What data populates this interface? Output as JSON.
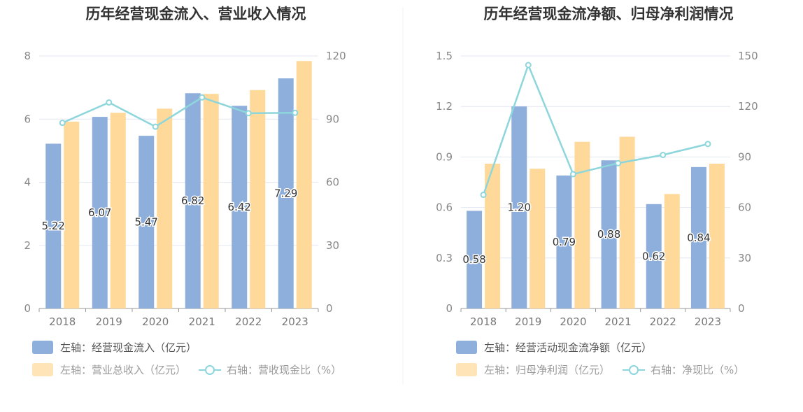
{
  "colors": {
    "bar_primary": "#8eaedc",
    "bar_secondary": "#ffd99a",
    "line": "#8dd6dc",
    "grid": "#e3e7f1",
    "axis": "#999999"
  },
  "chart_data": [
    {
      "type": "bar",
      "title": "历年经营现金流入、营业收入情况",
      "categories": [
        "2018",
        "2019",
        "2020",
        "2021",
        "2022",
        "2023"
      ],
      "left_axis": {
        "ylim": [
          0,
          8
        ],
        "ticks": [
          "0",
          "2",
          "4",
          "6",
          "8"
        ]
      },
      "right_axis": {
        "ylim": [
          0,
          120
        ],
        "ticks": [
          "0",
          "30",
          "60",
          "90",
          "120"
        ]
      },
      "series": [
        {
          "name": "左轴：经营现金流入（亿元）",
          "type": "bar",
          "axis": "left",
          "values": [
            5.22,
            6.07,
            5.47,
            6.82,
            6.42,
            7.29
          ],
          "labels": [
            "5.22",
            "6.07",
            "5.47",
            "6.82",
            "6.42",
            "7.29"
          ]
        },
        {
          "name": "左轴：营业总收入（亿元）",
          "type": "bar",
          "axis": "left",
          "values": [
            5.92,
            6.2,
            6.33,
            6.8,
            6.92,
            7.84
          ]
        },
        {
          "name": "右轴：营收现金比（%）",
          "type": "line",
          "axis": "right",
          "values": [
            88.2,
            97.9,
            86.4,
            100.3,
            92.8,
            93.0
          ]
        }
      ]
    },
    {
      "type": "bar",
      "title": "历年经营现金流净额、归母净利润情况",
      "categories": [
        "2018",
        "2019",
        "2020",
        "2021",
        "2022",
        "2023"
      ],
      "left_axis": {
        "ylim": [
          0,
          1.5
        ],
        "ticks": [
          "0",
          "0.3",
          "0.6",
          "0.9",
          "1.2",
          "1.5"
        ]
      },
      "right_axis": {
        "ylim": [
          0,
          150
        ],
        "ticks": [
          "0",
          "30",
          "60",
          "90",
          "120",
          "150"
        ]
      },
      "series": [
        {
          "name": "左轴：经营活动现金流净额（亿元）",
          "type": "bar",
          "axis": "left",
          "values": [
            0.58,
            1.2,
            0.79,
            0.88,
            0.62,
            0.84
          ],
          "labels": [
            "0.58",
            "1.20",
            "0.79",
            "0.88",
            "0.62",
            "0.84"
          ]
        },
        {
          "name": "左轴：归母净利润（亿元）",
          "type": "bar",
          "axis": "left",
          "values": [
            0.86,
            0.83,
            0.99,
            1.02,
            0.68,
            0.86
          ]
        },
        {
          "name": "右轴：净现比（%）",
          "type": "line",
          "axis": "right",
          "values": [
            67.5,
            144.6,
            79.8,
            86.3,
            91.2,
            97.7
          ]
        }
      ]
    }
  ]
}
